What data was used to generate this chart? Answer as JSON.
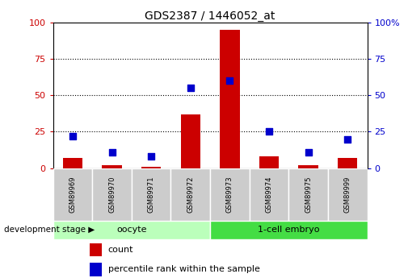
{
  "title": "GDS2387 / 1446052_at",
  "samples": [
    "GSM89969",
    "GSM89970",
    "GSM89971",
    "GSM89972",
    "GSM89973",
    "GSM89974",
    "GSM89975",
    "GSM89999"
  ],
  "counts": [
    7,
    2,
    1,
    37,
    95,
    8,
    2,
    7
  ],
  "percentiles": [
    22,
    11,
    8,
    55,
    60,
    25,
    11,
    20
  ],
  "bar_color": "#cc0000",
  "dot_color": "#0000cc",
  "ylim": [
    0,
    100
  ],
  "yticks": [
    0,
    25,
    50,
    75,
    100
  ],
  "groups": [
    {
      "label": "oocyte",
      "indices": [
        0,
        1,
        2,
        3
      ],
      "color": "#bbffbb"
    },
    {
      "label": "1-cell embryo",
      "indices": [
        4,
        5,
        6,
        7
      ],
      "color": "#44dd44"
    }
  ],
  "group_label": "development stage",
  "legend_count_label": "count",
  "legend_pct_label": "percentile rank within the sample",
  "tick_label_color_left": "#cc0000",
  "tick_label_color_right": "#0000cc",
  "bg_color": "#ffffff",
  "sample_box_color": "#cccccc",
  "fig_width": 5.05,
  "fig_height": 3.45,
  "dpi": 100
}
